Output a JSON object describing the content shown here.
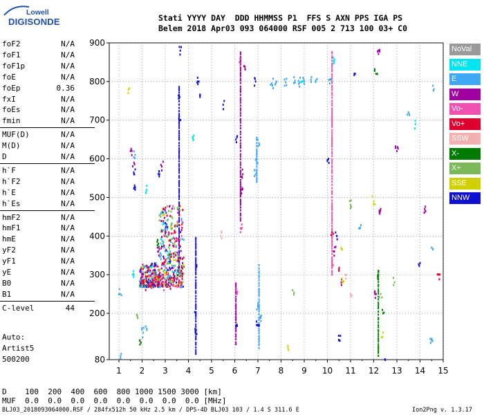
{
  "logo": {
    "top": "Lowell",
    "bottom": "DIGISONDE"
  },
  "header": {
    "line1": "Stati YYYY DAY  DDD HHMMSS P1  FFS S AXN PPS IGA PS",
    "line2": "Belem 2018 Apr03 093 064000 RSF 005 2 713 100 03+ C0"
  },
  "params": [
    [
      {
        "k": "foF2",
        "v": "N/A"
      },
      {
        "k": "foF1",
        "v": "N/A"
      },
      {
        "k": "foF1p",
        "v": "N/A"
      },
      {
        "k": "foE",
        "v": "N/A"
      },
      {
        "k": "foEp",
        "v": "0.36"
      },
      {
        "k": "fxI",
        "v": "N/A"
      },
      {
        "k": "foEs",
        "v": "N/A"
      },
      {
        "k": "fmin",
        "v": "N/A"
      }
    ],
    [
      {
        "k": "MUF(D)",
        "v": "N/A"
      },
      {
        "k": "M(D)",
        "v": "N/A"
      },
      {
        "k": "D",
        "v": "N/A"
      }
    ],
    [
      {
        "k": "h`F",
        "v": "N/A"
      },
      {
        "k": "h`F2",
        "v": "N/A"
      },
      {
        "k": "h`E",
        "v": "N/A"
      },
      {
        "k": "h`Es",
        "v": "N/A"
      }
    ],
    [
      {
        "k": "hmF2",
        "v": "N/A"
      },
      {
        "k": "hmF1",
        "v": "N/A"
      },
      {
        "k": "hmE",
        "v": "N/A"
      },
      {
        "k": "yF2",
        "v": "N/A"
      },
      {
        "k": "yF1",
        "v": "N/A"
      },
      {
        "k": "yE",
        "v": "N/A"
      },
      {
        "k": "B0",
        "v": "N/A"
      },
      {
        "k": "B1",
        "v": "N/A"
      }
    ],
    [
      {
        "k": "C-level",
        "v": "44"
      }
    ]
  ],
  "auto": {
    "line1": "Auto:",
    "line2": "Artist5",
    "line3": "500200"
  },
  "legend": [
    {
      "label": "NoVal",
      "color": "#9a9a9a"
    },
    {
      "label": "NNE",
      "color": "#00e5f0"
    },
    {
      "label": "E",
      "color": "#3fa9f5"
    },
    {
      "label": "W",
      "color": "#a000a0"
    },
    {
      "label": "Vo-",
      "color": "#f050b0"
    },
    {
      "label": "Vo+",
      "color": "#e00030"
    },
    {
      "label": "SSW",
      "color": "#f2b0b0"
    },
    {
      "label": "X-",
      "color": "#007a00"
    },
    {
      "label": "X+",
      "color": "#7ab85a"
    },
    {
      "label": "SSE",
      "color": "#d0d000"
    },
    {
      "label": "NNW",
      "color": "#1010d0"
    }
  ],
  "bottom": {
    "d_row": "D    100  200  400  600  800 1000 1500 3000 [km]",
    "muf_row": "MUF  0.0  0.0  0.0  0.0  0.0  0.0  0.0  0.0 [MHz]",
    "footer_left": "BLJ03_2018093064000.RSF / 284fx512h 50 kHz 2.5 km / DPS-4D BLJ03 103 / 1.4 S 311.6 E",
    "footer_right": "Ion2Png v. 1.3.17"
  },
  "chart_data": {
    "type": "scatter",
    "xlabel": "",
    "ylabel": "",
    "xlim": [
      1,
      15
    ],
    "ylim": [
      80,
      900
    ],
    "xticks": [
      1,
      2,
      3,
      4,
      5,
      6,
      7,
      8,
      9,
      10,
      11,
      12,
      13,
      14,
      15
    ],
    "yticks": [
      80,
      200,
      300,
      400,
      500,
      600,
      700,
      800,
      900
    ],
    "grid": true,
    "legend_position": "right",
    "series": [
      {
        "name": "E",
        "color": "#3fa9f5",
        "points": [
          [
            1.05,
            250
          ],
          [
            1.1,
            95
          ],
          [
            1.7,
            610
          ],
          [
            2.05,
            150
          ],
          [
            2.2,
            160
          ],
          [
            2.6,
            330
          ],
          [
            2.8,
            355
          ],
          [
            2.9,
            380
          ],
          [
            3.0,
            320
          ],
          [
            3.05,
            410
          ],
          [
            3.1,
            300
          ],
          [
            3.15,
            350
          ],
          [
            3.25,
            290
          ],
          [
            3.6,
            340
          ],
          [
            6.9,
            560
          ],
          [
            6.95,
            600
          ],
          [
            7.0,
            220
          ],
          [
            7.05,
            640
          ],
          [
            7.1,
            190
          ],
          [
            7.6,
            795
          ],
          [
            7.8,
            800
          ],
          [
            8.2,
            798
          ],
          [
            8.6,
            802
          ],
          [
            8.8,
            797
          ],
          [
            9.0,
            800
          ],
          [
            9.3,
            799
          ],
          [
            9.5,
            803
          ],
          [
            10.1,
            795
          ],
          [
            11.4,
            420
          ],
          [
            13.5,
            720
          ],
          [
            14.5,
            370
          ],
          [
            14.5,
            130
          ],
          [
            14.6,
            780
          ]
        ]
      },
      {
        "name": "NNE",
        "color": "#00e5f0",
        "points": [
          [
            1.6,
            300
          ],
          [
            2.2,
            520
          ],
          [
            2.9,
            430
          ],
          [
            3.1,
            360
          ],
          [
            3.5,
            300
          ],
          [
            4.2,
            650
          ],
          [
            8.9,
            800
          ],
          [
            10.3,
            850
          ],
          [
            13.8,
            690
          ]
        ]
      },
      {
        "name": "W",
        "color": "#a000a0",
        "points": [
          [
            1.5,
            620
          ],
          [
            1.65,
            590
          ],
          [
            2.7,
            360
          ],
          [
            2.85,
            580
          ],
          [
            3.0,
            400
          ],
          [
            3.2,
            290
          ],
          [
            3.7,
            310
          ],
          [
            3.75,
            330
          ],
          [
            6.3,
            520
          ],
          [
            6.35,
            560
          ],
          [
            6.4,
            840
          ],
          [
            10.3,
            360
          ],
          [
            10.6,
            280
          ],
          [
            12.1,
            250
          ],
          [
            12.3,
            470
          ],
          [
            12.2,
            880
          ],
          [
            13.0,
            620
          ],
          [
            14.2,
            470
          ]
        ]
      },
      {
        "name": "Vo-",
        "color": "#f050b0",
        "points": [
          [
            2.4,
            300
          ],
          [
            2.6,
            290
          ],
          [
            2.9,
            270
          ],
          [
            3.1,
            290
          ],
          [
            6.1,
            250
          ],
          [
            6.25,
            420
          ],
          [
            6.2,
            850
          ],
          [
            10.2,
            330
          ]
        ]
      },
      {
        "name": "Vo+",
        "color": "#e00030",
        "points": [
          [
            1.95,
            290
          ],
          [
            2.05,
            280
          ],
          [
            2.2,
            270
          ],
          [
            2.3,
            285
          ],
          [
            2.45,
            275
          ],
          [
            2.6,
            290
          ],
          [
            2.75,
            280
          ],
          [
            2.9,
            300
          ],
          [
            3.05,
            285
          ],
          [
            3.2,
            270
          ],
          [
            3.4,
            290
          ],
          [
            3.6,
            300
          ],
          [
            10.2,
            410
          ],
          [
            10.5,
            310
          ],
          [
            14.8,
            300
          ]
        ]
      },
      {
        "name": "SSW",
        "color": "#f2b0b0",
        "points": [
          [
            2.5,
            310
          ],
          [
            3.0,
            330
          ],
          [
            5.4,
            400
          ],
          [
            10.8,
            290
          ],
          [
            11.0,
            250
          ]
        ]
      },
      {
        "name": "X-",
        "color": "#007a00",
        "points": [
          [
            1.9,
            130
          ],
          [
            2.7,
            380
          ],
          [
            3.2,
            340
          ],
          [
            12.2,
            300
          ],
          [
            12.4,
            200
          ],
          [
            12.1,
            820
          ]
        ]
      },
      {
        "name": "X+",
        "color": "#7ab85a",
        "points": [
          [
            1.8,
            190
          ],
          [
            2.8,
            450
          ],
          [
            3.3,
            420
          ],
          [
            8.5,
            260
          ],
          [
            11.0,
            480
          ],
          [
            12.3,
            250
          ],
          [
            12.9,
            280
          ]
        ]
      },
      {
        "name": "SSE",
        "color": "#d0d000",
        "points": [
          [
            1.4,
            770
          ],
          [
            2.9,
            460
          ],
          [
            3.0,
            300
          ],
          [
            8.3,
            110
          ],
          [
            10.6,
            370
          ],
          [
            10.65,
            280
          ],
          [
            12.0,
            490
          ],
          [
            12.4,
            150
          ]
        ]
      },
      {
        "name": "NNW",
        "color": "#1010d0",
        "points": [
          [
            1.65,
            560
          ],
          [
            1.7,
            520
          ],
          [
            2.75,
            560
          ],
          [
            3.05,
            430
          ],
          [
            3.15,
            330
          ],
          [
            3.6,
            700
          ],
          [
            3.62,
            760
          ],
          [
            3.65,
            880
          ],
          [
            4.3,
            150
          ],
          [
            4.32,
            200
          ],
          [
            4.35,
            320
          ],
          [
            4.4,
            800
          ],
          [
            4.5,
            760
          ],
          [
            5.5,
            740
          ],
          [
            6.05,
            650
          ],
          [
            6.1,
            170
          ],
          [
            6.9,
            800
          ],
          [
            7.0,
            170
          ],
          [
            10.05,
            600
          ],
          [
            10.4,
            400
          ],
          [
            10.5,
            130
          ],
          [
            11.2,
            820
          ],
          [
            12.5,
            80
          ],
          [
            14.0,
            330
          ]
        ]
      }
    ],
    "vertical_traces": [
      {
        "name": "NNW",
        "color": "#1010d0",
        "x": 3.6,
        "y": [
          300,
          790
        ]
      },
      {
        "name": "NNW",
        "color": "#1010d0",
        "x": 4.32,
        "y": [
          95,
          400
        ]
      },
      {
        "name": "W",
        "color": "#a000a0",
        "x": 6.25,
        "y": [
          440,
          880
        ]
      },
      {
        "name": "W",
        "color": "#a000a0",
        "x": 6.05,
        "y": [
          120,
          280
        ]
      },
      {
        "name": "E",
        "color": "#3fa9f5",
        "x": 7.05,
        "y": [
          110,
          330
        ]
      },
      {
        "name": "E",
        "color": "#3fa9f5",
        "x": 6.95,
        "y": [
          540,
          660
        ]
      },
      {
        "name": "Vo-",
        "color": "#f050b0",
        "x": 10.2,
        "y": [
          300,
          880
        ]
      },
      {
        "name": "X-",
        "color": "#007a00",
        "x": 12.2,
        "y": [
          90,
          310
        ]
      }
    ]
  }
}
